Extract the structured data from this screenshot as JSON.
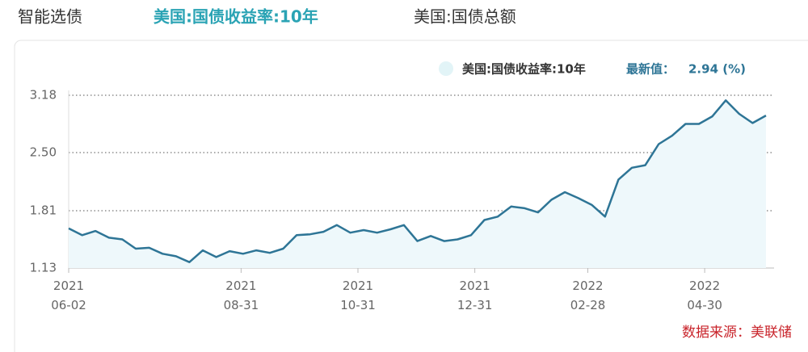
{
  "tabs": [
    "智能选债",
    "美国:国债收益率:10年",
    "美国:国债总额"
  ],
  "chart_data": {
    "type": "line",
    "legend_name": "美国:国债收益率:10年",
    "latest_label": "最新值：",
    "latest_value": {
      "value": 2.94,
      "label": "2.94 (%)"
    },
    "source": "数据来源：美联储",
    "x": [
      "2021-06-02",
      "2021-06-09",
      "2021-06-16",
      "2021-06-23",
      "2021-06-30",
      "2021-07-07",
      "2021-07-14",
      "2021-07-21",
      "2021-07-28",
      "2021-08-04",
      "2021-08-11",
      "2021-08-18",
      "2021-08-25",
      "2021-09-01",
      "2021-09-08",
      "2021-09-15",
      "2021-09-22",
      "2021-09-29",
      "2021-10-06",
      "2021-10-13",
      "2021-10-20",
      "2021-10-27",
      "2021-11-03",
      "2021-11-10",
      "2021-11-17",
      "2021-11-24",
      "2021-12-01",
      "2021-12-08",
      "2021-12-15",
      "2021-12-22",
      "2021-12-29",
      "2022-01-05",
      "2022-01-12",
      "2022-01-19",
      "2022-01-26",
      "2022-02-02",
      "2022-02-09",
      "2022-02-16",
      "2022-02-23",
      "2022-03-02",
      "2022-03-09",
      "2022-03-16",
      "2022-03-23",
      "2022-03-30",
      "2022-04-06",
      "2022-04-13",
      "2022-04-20",
      "2022-04-27",
      "2022-05-04",
      "2022-05-11",
      "2022-05-18",
      "2022-05-25",
      "2022-06-01"
    ],
    "series": [
      {
        "name": "美国:国债收益率:10年",
        "color": "#2e7596",
        "values": [
          1.6,
          1.52,
          1.57,
          1.49,
          1.47,
          1.36,
          1.37,
          1.3,
          1.27,
          1.2,
          1.34,
          1.26,
          1.33,
          1.3,
          1.34,
          1.31,
          1.36,
          1.52,
          1.53,
          1.56,
          1.64,
          1.55,
          1.58,
          1.55,
          1.59,
          1.64,
          1.45,
          1.51,
          1.45,
          1.47,
          1.52,
          1.7,
          1.74,
          1.86,
          1.84,
          1.79,
          1.94,
          2.03,
          1.96,
          1.88,
          1.74,
          2.18,
          2.32,
          2.35,
          2.6,
          2.7,
          2.84,
          2.84,
          2.93,
          3.12,
          2.96,
          2.85,
          2.94
        ]
      }
    ],
    "xlim": [
      "2021-06-02",
      "2022-06-01"
    ],
    "xticks": [
      {
        "value": "2021-06-02",
        "label": "2021\n06-02"
      },
      {
        "value": "2021-08-31",
        "label": "2021\n08-31"
      },
      {
        "value": "2021-10-31",
        "label": "2021\n10-31"
      },
      {
        "value": "2021-12-31",
        "label": "2021\n12-31"
      },
      {
        "value": "2022-02-28",
        "label": "2022\n02-28"
      },
      {
        "value": "2022-04-30",
        "label": "2022\n04-30"
      }
    ],
    "ylim": [
      1.13,
      3.18
    ],
    "yticks": [
      1.13,
      1.81,
      {
        "value": 2.5,
        "label": "2.50"
      },
      3.18
    ],
    "grid": true,
    "fill": "#eef8fb"
  }
}
